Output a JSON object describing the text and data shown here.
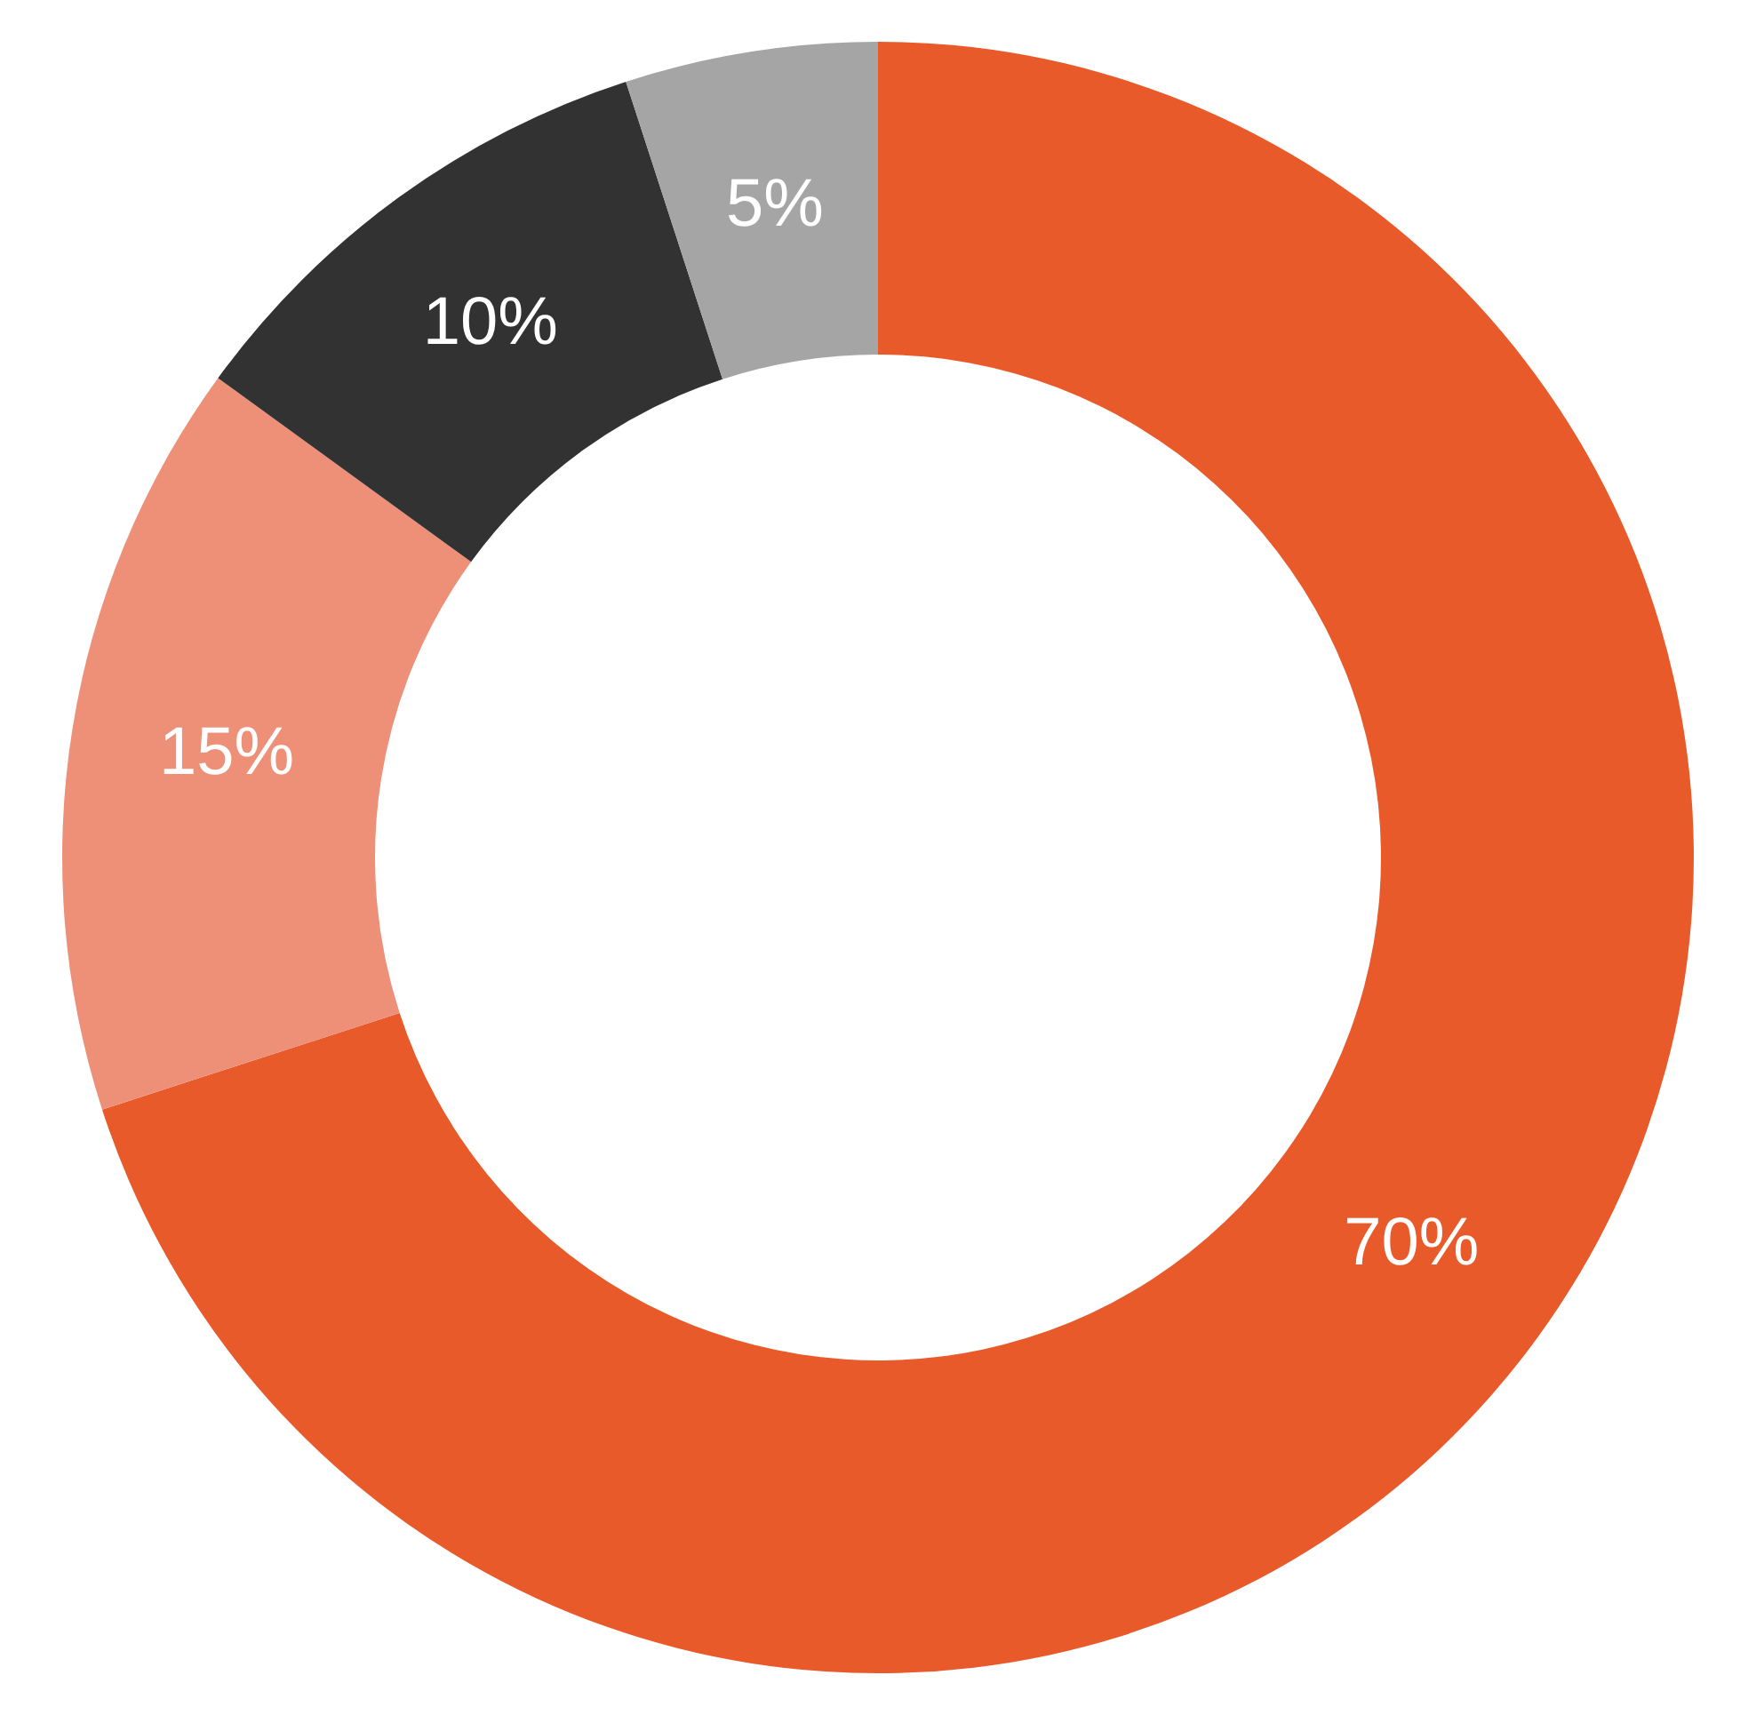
{
  "chart_data": {
    "type": "donut",
    "categories": [
      null,
      null,
      null,
      null
    ],
    "values": [
      70,
      15,
      10,
      5
    ],
    "colors": [
      "#e95a2a",
      "#ee8f77",
      "#323232",
      "#a5a5a5"
    ],
    "value_labels": [
      "70%",
      "15%",
      "10%",
      "5%"
    ]
  }
}
